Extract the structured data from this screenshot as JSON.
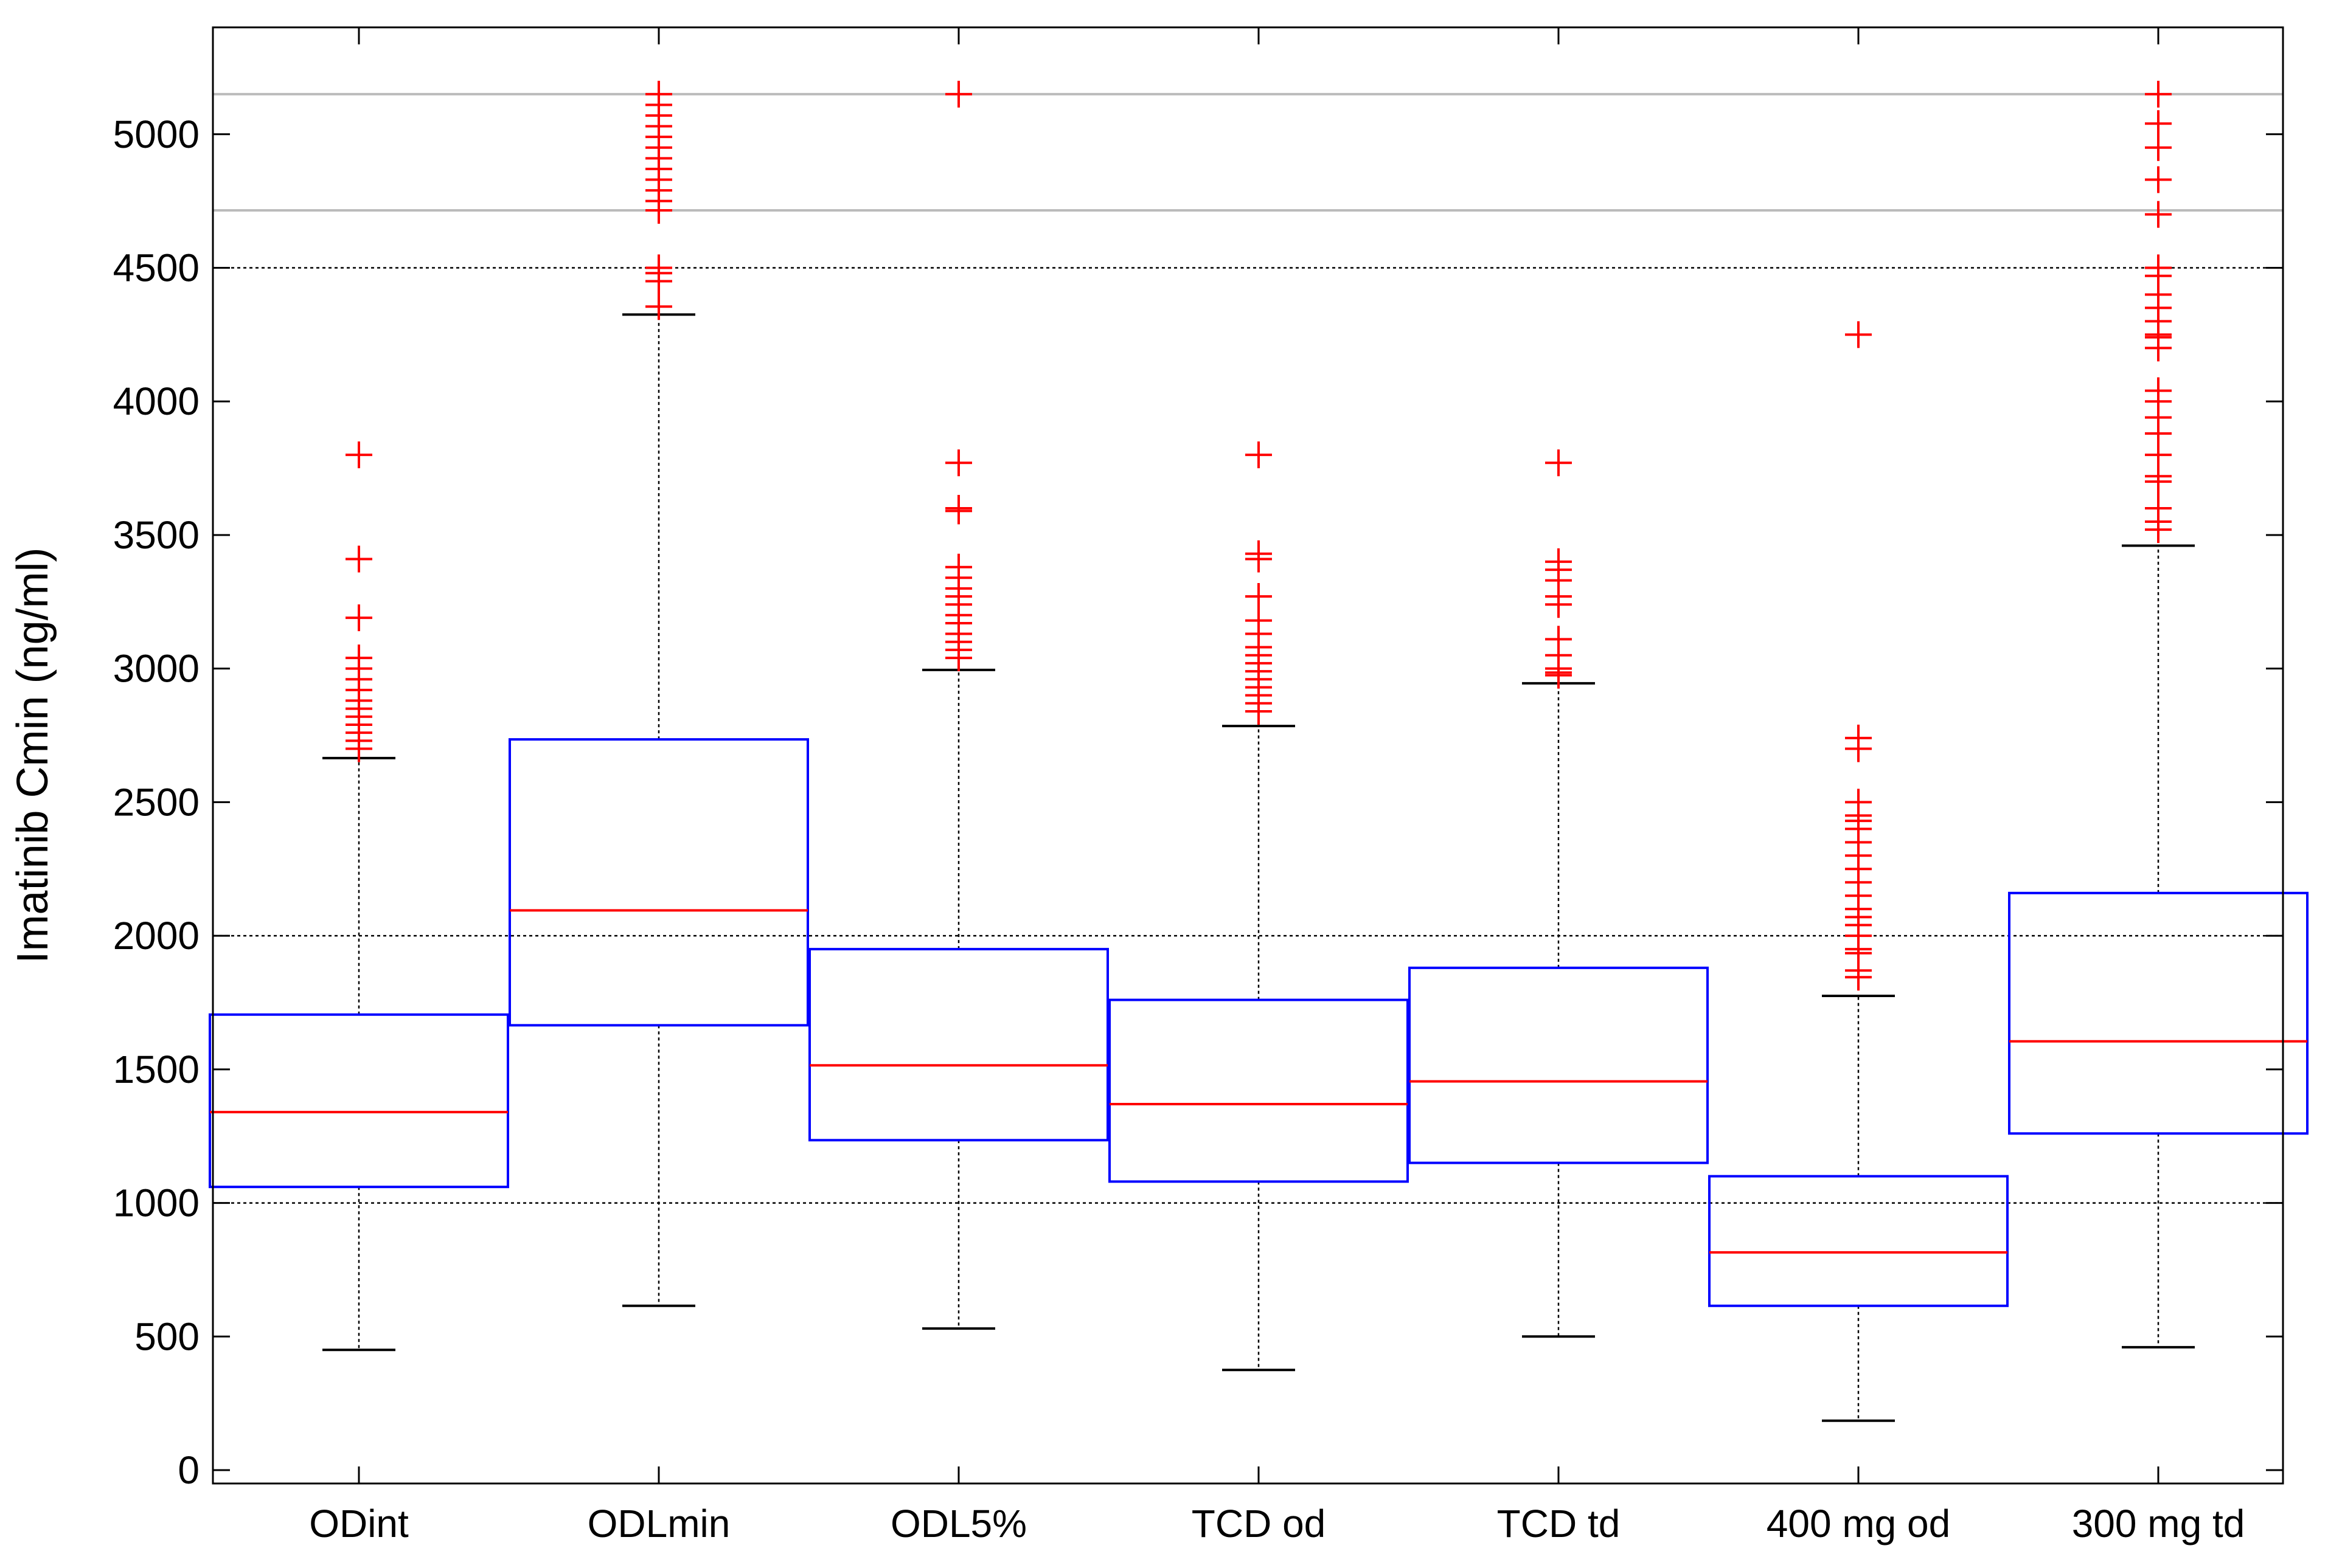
{
  "chart_data": {
    "type": "box",
    "title": "",
    "xlabel": "",
    "ylabel": "Imatinib Cmin (ng/ml)",
    "ylim": [
      -50,
      5400
    ],
    "yticks": [
      0,
      500,
      1000,
      1500,
      2000,
      2500,
      3000,
      3500,
      4000,
      4500,
      5000
    ],
    "ytick_labels": [
      "0",
      "500",
      "1000",
      "1500",
      "2000",
      "2500",
      "3000",
      "3500",
      "4000",
      "4500",
      "5000"
    ],
    "categories": [
      "ODint",
      "ODLmin",
      "ODL5%",
      "TCD od",
      "TCD td",
      "400 mg od",
      "300 mg td"
    ],
    "reference_lines": {
      "dotted_black": [
        1000,
        2000,
        4500
      ],
      "solid_gray": [
        4715,
        5150
      ]
    },
    "colors": {
      "box": "#0000ff",
      "median": "#ff0000",
      "outlier": "#ff0000",
      "whisker": "#000000",
      "ref_solid": "#bbbbbb"
    },
    "boxes": [
      {
        "name": "ODint",
        "q1": 1060,
        "median": 1340,
        "q3": 1705,
        "whisker_low": 450,
        "whisker_high": 2665,
        "outliers": [
          2700,
          2730,
          2760,
          2790,
          2820,
          2850,
          2880,
          2920,
          2960,
          3000,
          3040,
          3190,
          3410,
          3800
        ]
      },
      {
        "name": "ODLmin",
        "q1": 1665,
        "median": 2095,
        "q3": 2735,
        "whisker_low": 615,
        "whisker_high": 4325,
        "outliers": [
          4355,
          4450,
          4480,
          4500,
          4715,
          4750,
          4790,
          4830,
          4870,
          4910,
          4950,
          4990,
          5030,
          5070,
          5110,
          5150
        ]
      },
      {
        "name": "ODL5%",
        "q1": 1235,
        "median": 1515,
        "q3": 1950,
        "whisker_low": 530,
        "whisker_high": 2995,
        "outliers": [
          3040,
          3070,
          3100,
          3130,
          3170,
          3200,
          3240,
          3270,
          3300,
          3340,
          3380,
          3590,
          3600,
          3770,
          5150
        ]
      },
      {
        "name": "TCD od",
        "q1": 1080,
        "median": 1370,
        "q3": 1760,
        "whisker_low": 375,
        "whisker_high": 2785,
        "outliers": [
          2840,
          2870,
          2900,
          2930,
          2960,
          2990,
          3020,
          3050,
          3080,
          3130,
          3180,
          3270,
          3410,
          3430,
          3800
        ]
      },
      {
        "name": "TCD td",
        "q1": 1150,
        "median": 1455,
        "q3": 1880,
        "whisker_low": 500,
        "whisker_high": 2945,
        "outliers": [
          2975,
          2985,
          3000,
          3050,
          3110,
          3240,
          3270,
          3330,
          3370,
          3400,
          3770
        ]
      },
      {
        "name": "400 mg od",
        "q1": 615,
        "median": 815,
        "q3": 1100,
        "whisker_low": 185,
        "whisker_high": 1775,
        "outliers": [
          1845,
          1870,
          1935,
          1950,
          2000,
          2040,
          2070,
          2100,
          2150,
          2200,
          2250,
          2300,
          2350,
          2400,
          2430,
          2450,
          2500,
          2700,
          2740,
          4250
        ]
      },
      {
        "name": "300 mg td",
        "q1": 1260,
        "median": 1605,
        "q3": 2160,
        "whisker_low": 460,
        "whisker_high": 3460,
        "outliers": [
          3520,
          3550,
          3600,
          3700,
          3720,
          3800,
          3880,
          3940,
          4000,
          4040,
          4200,
          4240,
          4250,
          4300,
          4350,
          4400,
          4470,
          4500,
          4700,
          4830,
          4950,
          5040,
          5150
        ]
      }
    ]
  }
}
